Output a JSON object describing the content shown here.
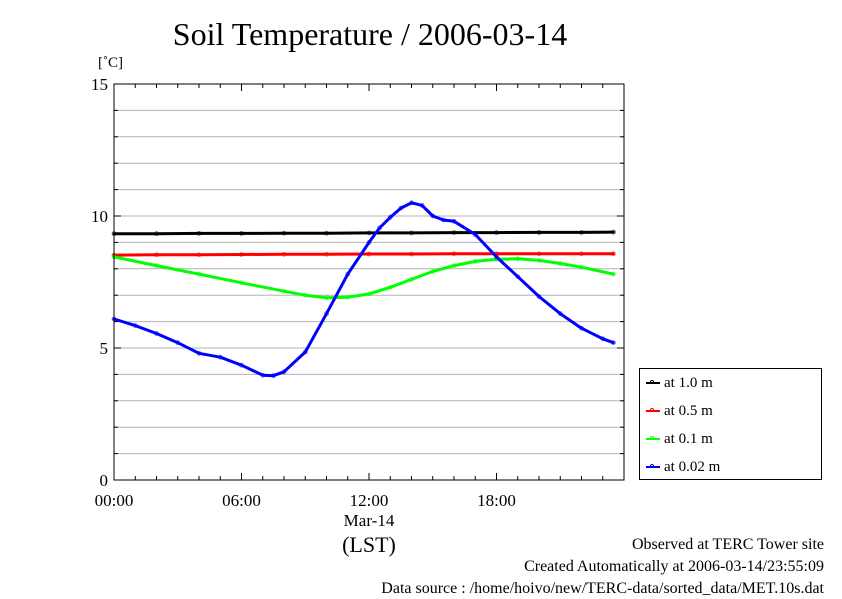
{
  "page": {
    "title": "Soil Temperature / 2006-03-14",
    "unit_label": "[˚C]",
    "footer": {
      "observed": "Observed at TERC Tower site",
      "created": "Created Automatically at 2006-03-14/23:55:09",
      "source": "Data source : /home/hoivo/new/TERC-data/sorted_data/MET.10s.dat"
    }
  },
  "chart_data": {
    "type": "line",
    "title": "Soil Temperature / 2006-03-14",
    "ylabel": "[˚C]",
    "xlabel": "(LST)",
    "ylim": [
      0,
      15
    ],
    "yticks": [
      0,
      5,
      10,
      15
    ],
    "ytick_labels": [
      "0",
      "5",
      "10",
      "15"
    ],
    "xlim": [
      0,
      24
    ],
    "xticks": [
      0,
      6,
      12,
      18
    ],
    "xtick_labels": [
      "00:00",
      "06:00",
      "12:00",
      "18:00"
    ],
    "xdate_label": "Mar-14",
    "grid": true,
    "legend_position": "right-bottom",
    "series": [
      {
        "name": "at 1.0 m",
        "color": "#000000",
        "x": [
          0,
          2,
          4,
          6,
          8,
          10,
          12,
          14,
          16,
          18,
          20,
          22,
          23.5
        ],
        "values": [
          9.33,
          9.33,
          9.34,
          9.34,
          9.35,
          9.35,
          9.36,
          9.36,
          9.37,
          9.37,
          9.38,
          9.38,
          9.39
        ]
      },
      {
        "name": "at 0.5 m",
        "color": "#ff0000",
        "x": [
          0,
          2,
          4,
          6,
          8,
          10,
          12,
          14,
          16,
          18,
          20,
          22,
          23.5
        ],
        "values": [
          8.52,
          8.53,
          8.53,
          8.54,
          8.55,
          8.55,
          8.56,
          8.56,
          8.57,
          8.57,
          8.57,
          8.57,
          8.57
        ]
      },
      {
        "name": "at 0.1 m",
        "color": "#00ff00",
        "x": [
          0,
          2,
          4,
          6,
          8,
          9,
          10,
          11,
          12,
          13,
          14,
          15,
          16,
          17,
          18,
          19,
          20,
          21,
          22,
          23.5
        ],
        "values": [
          8.45,
          8.12,
          7.8,
          7.47,
          7.15,
          7.0,
          6.9,
          6.92,
          7.05,
          7.3,
          7.6,
          7.9,
          8.12,
          8.28,
          8.36,
          8.38,
          8.32,
          8.2,
          8.06,
          7.8
        ]
      },
      {
        "name": "at 0.02 m",
        "color": "#0000ff",
        "x": [
          0,
          1,
          2,
          3,
          4,
          5,
          6,
          7,
          7.5,
          8,
          9,
          10,
          11,
          12,
          12.5,
          13,
          13.5,
          14,
          14.5,
          15,
          15.5,
          16,
          17,
          18,
          19,
          20,
          21,
          22,
          23,
          23.5
        ],
        "values": [
          6.1,
          5.85,
          5.55,
          5.2,
          4.8,
          4.65,
          4.35,
          3.97,
          3.95,
          4.1,
          4.85,
          6.3,
          7.8,
          9.0,
          9.55,
          9.95,
          10.3,
          10.5,
          10.4,
          10.0,
          9.85,
          9.8,
          9.3,
          8.45,
          7.7,
          6.95,
          6.3,
          5.75,
          5.35,
          5.2
        ]
      }
    ]
  }
}
